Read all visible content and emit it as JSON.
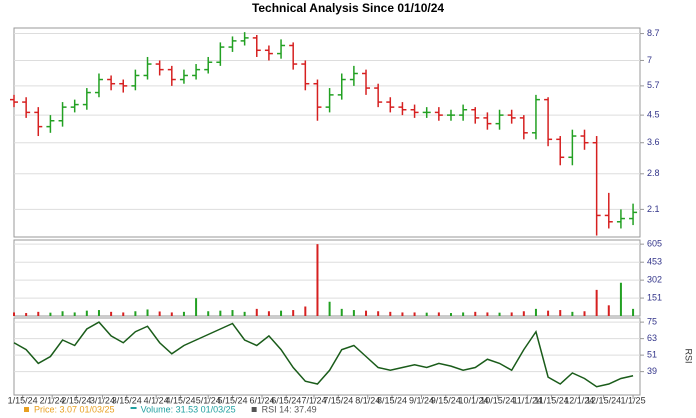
{
  "chart_data": {
    "type": "ohlc",
    "title": "Technical Analysis Since 01/10/24",
    "log_scale": true,
    "grid": true,
    "up_color": "#22a022",
    "down_color": "#d62020",
    "x": [
      "1/10/24",
      "1/17/24",
      "1/24/24",
      "1/31/24",
      "2/7/24",
      "2/14/24",
      "2/21/24",
      "2/28/24",
      "3/6/24",
      "3/13/24",
      "3/20/24",
      "3/27/24",
      "4/3/24",
      "4/10/24",
      "4/17/24",
      "4/24/24",
      "5/1/24",
      "5/8/24",
      "5/15/24",
      "5/22/24",
      "5/29/24",
      "6/5/24",
      "6/12/24",
      "6/19/24",
      "6/26/24",
      "7/3/24",
      "7/10/24",
      "7/17/24",
      "7/24/24",
      "7/31/24",
      "8/7/24",
      "8/14/24",
      "8/21/24",
      "8/28/24",
      "9/4/24",
      "9/11/24",
      "9/18/24",
      "9/25/24",
      "10/2/24",
      "10/9/24",
      "10/16/24",
      "10/23/24",
      "10/30/24",
      "11/6/24",
      "11/13/24",
      "11/20/24",
      "11/27/24",
      "12/4/24",
      "12/11/24",
      "12/18/24",
      "12/25/24",
      "1/1/25"
    ],
    "xlim": [
      "1/10/24",
      "1/5/25"
    ],
    "xticks": [
      "1/15/24",
      "2/1/24",
      "2/15/24",
      "3/1/24",
      "3/15/24",
      "4/1/24",
      "4/15/24",
      "5/1/24",
      "5/15/24",
      "6/1/24",
      "6/15/24",
      "7/1/24",
      "7/15/24",
      "8/1/24",
      "8/15/24",
      "9/1/24",
      "9/15/24",
      "10/1/24",
      "10/15/24",
      "11/1/24",
      "11/15/24",
      "12/1/24",
      "12/15/24",
      "1/1/25"
    ],
    "open": [
      5.1,
      5.0,
      4.6,
      4.1,
      4.3,
      4.8,
      4.9,
      5.4,
      6.0,
      5.8,
      5.7,
      6.2,
      6.8,
      6.5,
      6.0,
      6.2,
      6.5,
      6.9,
      7.8,
      8.2,
      8.4,
      7.6,
      7.4,
      7.9,
      6.8,
      5.8,
      4.8,
      5.3,
      6.0,
      6.3,
      5.6,
      5.0,
      4.8,
      4.7,
      4.6,
      4.6,
      4.5,
      4.5,
      4.7,
      4.4,
      4.2,
      4.5,
      4.4,
      3.9,
      5.1,
      3.7,
      3.2,
      3.8,
      3.6,
      2.0,
      1.9,
      1.95
    ],
    "high": [
      5.3,
      5.2,
      4.8,
      4.5,
      5.0,
      5.1,
      5.6,
      6.3,
      6.2,
      6.0,
      6.5,
      7.2,
      7.0,
      6.7,
      6.5,
      6.8,
      7.2,
      8.1,
      8.5,
      8.8,
      8.6,
      7.9,
      8.3,
      8.1,
      7.0,
      6.0,
      5.6,
      6.3,
      6.7,
      6.5,
      5.8,
      5.2,
      5.0,
      4.9,
      4.8,
      4.8,
      4.7,
      4.9,
      4.8,
      4.6,
      4.7,
      4.7,
      4.5,
      5.3,
      5.2,
      3.8,
      4.0,
      4.0,
      3.8,
      2.4,
      2.1,
      2.2
    ],
    "low": [
      4.8,
      4.4,
      3.8,
      3.9,
      4.1,
      4.6,
      4.7,
      5.2,
      5.5,
      5.4,
      5.5,
      6.0,
      6.2,
      5.7,
      5.8,
      6.0,
      6.3,
      6.7,
      7.5,
      7.9,
      7.2,
      7.0,
      7.1,
      6.5,
      5.5,
      4.3,
      4.6,
      5.1,
      5.7,
      5.3,
      4.8,
      4.6,
      4.5,
      4.4,
      4.4,
      4.3,
      4.3,
      4.3,
      4.2,
      4.0,
      4.0,
      4.2,
      3.7,
      3.7,
      3.5,
      3.0,
      3.0,
      3.4,
      1.7,
      1.8,
      1.8,
      1.85
    ],
    "close": [
      5.0,
      4.6,
      4.1,
      4.3,
      4.8,
      4.9,
      5.4,
      6.0,
      5.8,
      5.7,
      6.2,
      6.8,
      6.5,
      6.0,
      6.2,
      6.5,
      6.9,
      7.8,
      8.2,
      8.4,
      7.6,
      7.4,
      7.9,
      6.8,
      5.8,
      4.8,
      5.3,
      6.0,
      6.3,
      5.6,
      5.0,
      4.8,
      4.7,
      4.6,
      4.6,
      4.5,
      4.5,
      4.7,
      4.4,
      4.2,
      4.5,
      4.4,
      3.9,
      5.1,
      3.7,
      3.2,
      3.8,
      3.6,
      2.0,
      1.9,
      1.95,
      2.05
    ],
    "ylim": [
      1.68,
      9.1
    ],
    "yticks": [
      8.7,
      7.0,
      5.7,
      4.5,
      3.6,
      2.8,
      2.1
    ],
    "volume": {
      "values": [
        30,
        25,
        35,
        28,
        40,
        30,
        45,
        50,
        35,
        30,
        40,
        55,
        38,
        30,
        35,
        150,
        40,
        45,
        50,
        35,
        60,
        40,
        45,
        50,
        80,
        605,
        120,
        60,
        50,
        45,
        40,
        35,
        30,
        30,
        28,
        30,
        25,
        30,
        35,
        30,
        28,
        30,
        40,
        60,
        45,
        50,
        35,
        40,
        220,
        90,
        280,
        60
      ],
      "ylim": [
        0,
        640
      ],
      "yticks": [
        605,
        453,
        302,
        151
      ]
    },
    "rsi": {
      "name": "RSI",
      "color": "#1a5c1a",
      "values": [
        60,
        55,
        45,
        50,
        62,
        58,
        70,
        75,
        65,
        60,
        68,
        72,
        60,
        52,
        58,
        62,
        66,
        70,
        74,
        62,
        58,
        65,
        55,
        42,
        32,
        30,
        40,
        55,
        58,
        50,
        42,
        40,
        42,
        44,
        42,
        45,
        43,
        40,
        42,
        48,
        45,
        40,
        55,
        68,
        35,
        30,
        38,
        34,
        28,
        30,
        34,
        36
      ],
      "ylim": [
        22,
        78
      ],
      "yticks": [
        75,
        63,
        51,
        39
      ]
    },
    "legend": [
      {
        "text": "Price: 3.07  01/03/25",
        "color": "#e8a020"
      },
      {
        "text": "Volume: 31.53  01/03/25",
        "color": "#20a0a0"
      },
      {
        "text": "RSI 14: 37.49",
        "color": "#555555"
      }
    ]
  }
}
